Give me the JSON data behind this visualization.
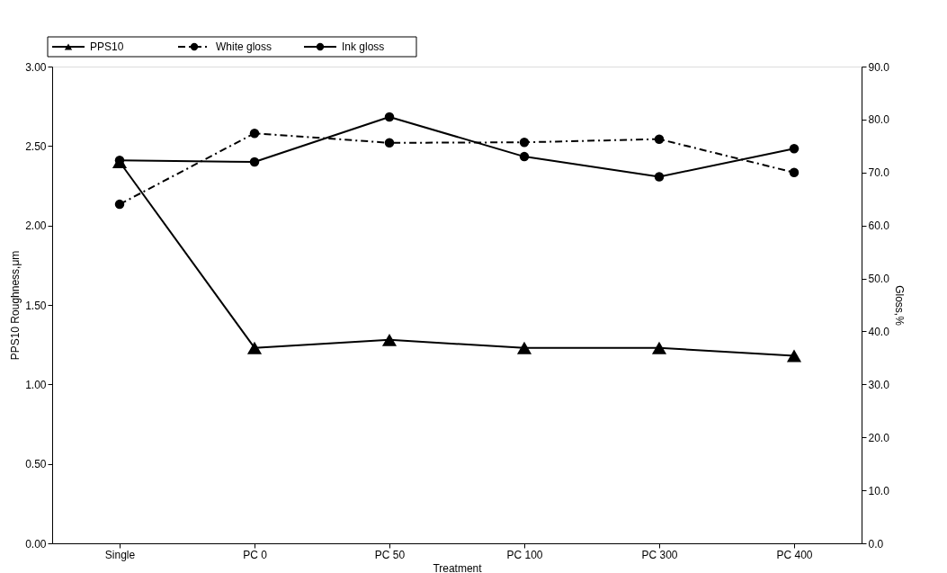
{
  "chart_data": {
    "type": "line",
    "xlabel": "Treatment",
    "ylabel": "PPS10 Roughness,μm",
    "y2label": "Gloss,%",
    "categories": [
      "Single",
      "PC 0",
      "PC 50",
      "PC 100",
      "PC 300",
      "PC 400"
    ],
    "series": [
      {
        "name": "PPS10",
        "color": "#000000",
        "marker": "triangle",
        "line_style": "solid",
        "values": [
          2.4,
          1.23,
          1.28,
          1.23,
          1.23,
          1.18
        ]
      },
      {
        "name": "White gloss",
        "color": "#000000",
        "marker": "circle",
        "line_style": "dashed",
        "axis": "y2",
        "values": [
          64,
          77.4,
          75.6,
          75.7,
          76.3,
          70.0
        ]
      },
      {
        "name": "Ink gloss",
        "color": "#000000",
        "marker": "circle",
        "line_style": "solid",
        "axis": "y2",
        "values": [
          72.3,
          72.0,
          80.5,
          73.0,
          69.2,
          74.5
        ]
      }
    ],
    "ylim": [
      0,
      3
    ],
    "yticks": [
      {
        "value": 0,
        "label": "0.00"
      },
      {
        "value": 0.5,
        "label": "0.50"
      },
      {
        "value": 1,
        "label": "1.00"
      },
      {
        "value": 1.5,
        "label": "1.50"
      },
      {
        "value": 2,
        "label": "2.00"
      },
      {
        "value": 2.5,
        "label": "2.50"
      },
      {
        "value": 3,
        "label": "3.00"
      }
    ],
    "y2lim": [
      0,
      90
    ],
    "y2ticks": [
      {
        "value": 0,
        "label": "0.0"
      },
      {
        "value": 10,
        "label": "10.0"
      },
      {
        "value": 20,
        "label": "20.0"
      },
      {
        "value": 30,
        "label": "30.0"
      },
      {
        "value": 40,
        "label": "40.0"
      },
      {
        "value": 50,
        "label": "50.0"
      },
      {
        "value": 60,
        "label": "60.0"
      },
      {
        "value": 70,
        "label": "70.0"
      },
      {
        "value": 80,
        "label": "80.0"
      },
      {
        "value": 90,
        "label": "90.0"
      }
    ],
    "grid": false,
    "legend": "top left"
  }
}
